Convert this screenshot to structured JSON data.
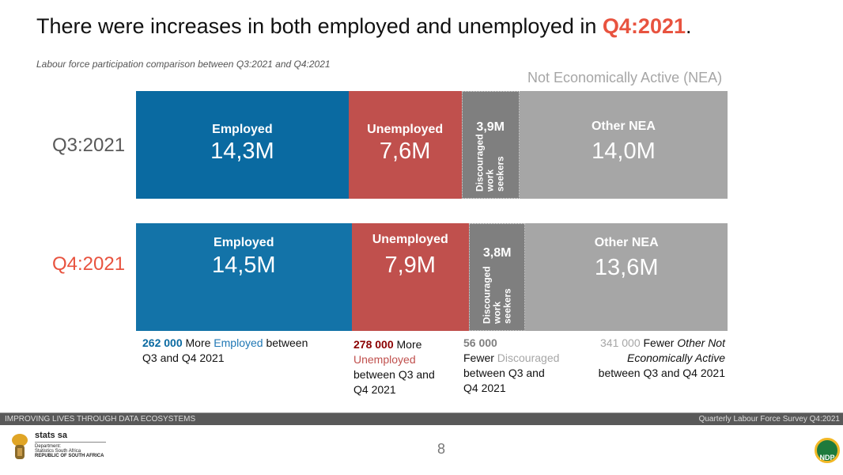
{
  "title": {
    "text": "There were increases in both employed and unemployed in ",
    "highlight": "Q4:2021",
    "end": "."
  },
  "subtitle": "Labour force participation comparison between Q3:2021 and Q4:2021",
  "chart_data": {
    "type": "bar",
    "stacked": true,
    "orientation": "horizontal",
    "title": "Labour force participation comparison between Q3:2021 and Q4:2021",
    "group_label": "Not Economically Active (NEA)",
    "categories": [
      "Q3:2021",
      "Q4:2021"
    ],
    "category_colors": [
      "#595959",
      "#e8533f"
    ],
    "unit": "M",
    "series": [
      {
        "name": "Employed",
        "color": "#0a6aa1",
        "values": [
          14.3,
          14.5
        ],
        "labels": [
          "14,3M",
          "14,5M"
        ]
      },
      {
        "name": "Unemployed",
        "color": "#c0504d",
        "values": [
          7.6,
          7.9
        ],
        "labels": [
          "7,6M",
          "7,9M"
        ]
      },
      {
        "name": "Discouraged work seekers",
        "color": "#7f7f7f",
        "values": [
          3.9,
          3.8
        ],
        "labels": [
          "3,9M",
          "3,8M"
        ]
      },
      {
        "name": "Other NEA",
        "color": "#a6a6a6",
        "values": [
          14.0,
          13.6
        ],
        "labels": [
          "14,0M",
          "13,6M"
        ]
      }
    ],
    "alt_colors": {
      "Employed": [
        "#0a6aa1",
        "#1373a8"
      ]
    }
  },
  "notes": [
    {
      "num": "262 000",
      "a": " More ",
      "cat": "Employed",
      "b": " between Q3 and Q4 2021"
    },
    {
      "num": "278 000",
      "a": " More ",
      "cat": "Unemployed",
      "b": " between Q3 and Q4 2021"
    },
    {
      "num": "56 000",
      "a": " Fewer ",
      "cat": "Discouraged",
      "b": " between Q3 and Q4 2021"
    },
    {
      "num": "341 000",
      "a": " Fewer ",
      "cat": "Other Not Economically Active",
      "b": " between Q3 and Q4 2021"
    }
  ],
  "footer": {
    "left": "IMPROVING LIVES THROUGH DATA ECOSYSTEMS",
    "right": "Quarterly Labour Force Survey Q4:2021"
  },
  "page_number": "8",
  "logo": {
    "name": "stats sa",
    "line1": "Department:",
    "line2": "Statistics South Africa",
    "line3": "REPUBLIC OF SOUTH AFRICA",
    "ndp": "NDP"
  }
}
